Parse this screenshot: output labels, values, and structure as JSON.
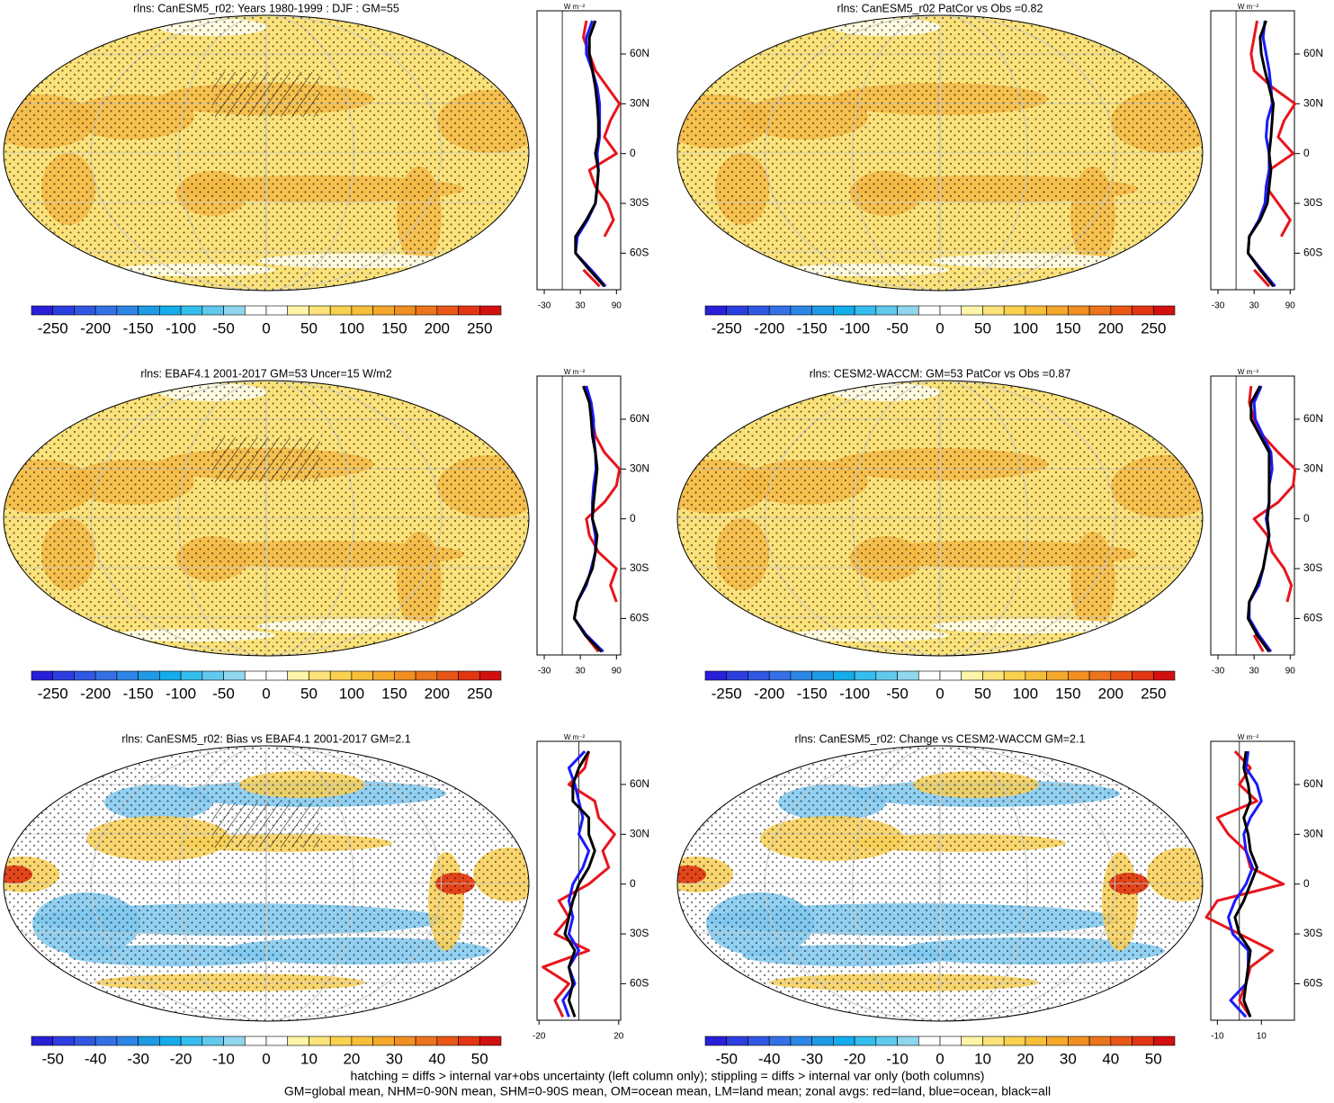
{
  "chart_data": [
    {
      "type": "map",
      "title": "rlns: CanESM5_r02: Years 1980-1999 : DJF : GM=55",
      "clim": [
        -275,
        275
      ],
      "cbar_ticks": [
        -250,
        -200,
        -150,
        -100,
        -50,
        0,
        50,
        100,
        150,
        200,
        250
      ],
      "cbar_colors": [
        "#2a1fd9",
        "#2d3ee0",
        "#3158e3",
        "#3470e6",
        "#2d86e6",
        "#1f9ae4",
        "#14acea",
        "#35bdee",
        "#62c9ee",
        "#8fd6ee",
        "#ffffff",
        "#ffffff",
        "#fff5a8",
        "#fce47a",
        "#f9d14f",
        "#f7be3a",
        "#f4a82c",
        "#f18f22",
        "#ec741c",
        "#e85618",
        "#e33514",
        "#d21010"
      ]
    },
    {
      "type": "line",
      "unit": "W m⁻²",
      "xlim": [
        -42,
        97
      ],
      "xticks": [
        -30,
        30,
        90
      ],
      "ylim": [
        -82,
        86
      ],
      "yticks": [
        {
          "value": -60,
          "label": "60S"
        },
        {
          "value": -30,
          "label": "30S"
        },
        {
          "value": 0,
          "label": "0"
        },
        {
          "value": 30,
          "label": "30N"
        },
        {
          "value": 60,
          "label": "60N"
        }
      ],
      "y": [
        80,
        70,
        60,
        50,
        40,
        30,
        20,
        10,
        0,
        -10,
        -20,
        -30,
        -40,
        -50,
        -60,
        -70,
        -80
      ],
      "series": [
        {
          "color": "#e8141c",
          "values": [
            40,
            35,
            45,
            55,
            75,
            95,
            80,
            70,
            90,
            45,
            55,
            75,
            85,
            70,
            null,
            35,
            62
          ]
        },
        {
          "color": "#1a1aff",
          "values": [
            50,
            40,
            40,
            50,
            58,
            62,
            62,
            62,
            58,
            60,
            58,
            55,
            42,
            25,
            22,
            48,
            72
          ]
        },
        {
          "color": "#000000",
          "values": [
            55,
            45,
            45,
            50,
            55,
            58,
            60,
            60,
            55,
            60,
            58,
            55,
            40,
            22,
            22,
            45,
            70
          ]
        }
      ]
    },
    {
      "type": "map",
      "title": "rlns: CanESM5_r02 PatCor vs Obs =0.82",
      "clim": [
        -275,
        275
      ],
      "cbar_ticks": [
        -250,
        -200,
        -150,
        -100,
        -50,
        0,
        50,
        100,
        150,
        200,
        250
      ],
      "cbar_colors": [
        "#2a1fd9",
        "#2d3ee0",
        "#3158e3",
        "#3470e6",
        "#2d86e6",
        "#1f9ae4",
        "#14acea",
        "#35bdee",
        "#62c9ee",
        "#8fd6ee",
        "#ffffff",
        "#ffffff",
        "#fff5a8",
        "#fce47a",
        "#f9d14f",
        "#f7be3a",
        "#f4a82c",
        "#f18f22",
        "#ec741c",
        "#e85618",
        "#e33514",
        "#d21010"
      ]
    },
    {
      "type": "line",
      "unit": "W m⁻²",
      "xlim": [
        -42,
        97
      ],
      "xticks": [
        -30,
        30,
        90
      ],
      "ylim": [
        -82,
        86
      ],
      "yticks": [
        {
          "value": -60,
          "label": "60S"
        },
        {
          "value": -30,
          "label": "30S"
        },
        {
          "value": 0,
          "label": "0"
        },
        {
          "value": 30,
          "label": "30N"
        },
        {
          "value": 60,
          "label": "60N"
        }
      ],
      "y": [
        80,
        70,
        60,
        50,
        40,
        30,
        20,
        10,
        0,
        -10,
        -20,
        -30,
        -40,
        -50,
        -60,
        -70,
        -80
      ],
      "series": [
        {
          "color": "#e8141c",
          "values": [
            35,
            30,
            25,
            30,
            60,
            98,
            80,
            70,
            95,
            55,
            50,
            70,
            90,
            75,
            null,
            30,
            55
          ]
        },
        {
          "color": "#1a1aff",
          "values": [
            48,
            45,
            50,
            55,
            58,
            60,
            52,
            50,
            55,
            55,
            50,
            48,
            38,
            22,
            20,
            42,
            65
          ]
        },
        {
          "color": "#000000",
          "values": [
            50,
            40,
            42,
            48,
            55,
            62,
            60,
            58,
            55,
            58,
            55,
            52,
            40,
            22,
            20,
            40,
            62
          ]
        }
      ]
    },
    {
      "type": "map",
      "title": "rlns: EBAF4.1 2001-2017 GM=53 Uncer=15 W/m2",
      "clim": [
        -275,
        275
      ],
      "cbar_ticks": [
        -250,
        -200,
        -150,
        -100,
        -50,
        0,
        50,
        100,
        150,
        200,
        250
      ],
      "cbar_colors": [
        "#2a1fd9",
        "#2d3ee0",
        "#3158e3",
        "#3470e6",
        "#2d86e6",
        "#1f9ae4",
        "#14acea",
        "#35bdee",
        "#62c9ee",
        "#8fd6ee",
        "#ffffff",
        "#ffffff",
        "#fff5a8",
        "#fce47a",
        "#f9d14f",
        "#f7be3a",
        "#f4a82c",
        "#f18f22",
        "#ec741c",
        "#e85618",
        "#e33514",
        "#d21010"
      ]
    },
    {
      "type": "line",
      "unit": "W m⁻²",
      "xlim": [
        -42,
        97
      ],
      "xticks": [
        -30,
        30,
        90
      ],
      "ylim": [
        -82,
        86
      ],
      "yticks": [
        {
          "value": -60,
          "label": "60S"
        },
        {
          "value": -30,
          "label": "30S"
        },
        {
          "value": 0,
          "label": "0"
        },
        {
          "value": 30,
          "label": "30N"
        },
        {
          "value": 60,
          "label": "60N"
        }
      ],
      "y": [
        80,
        70,
        60,
        50,
        40,
        30,
        20,
        10,
        0,
        -10,
        -20,
        -30,
        -40,
        -50,
        -60,
        -70,
        -80
      ],
      "series": [
        {
          "color": "#e8141c",
          "values": [
            38,
            45,
            50,
            55,
            70,
            95,
            90,
            70,
            40,
            45,
            60,
            90,
            80,
            90,
            null,
            38,
            60
          ]
        },
        {
          "color": "#1a1aff",
          "values": [
            40,
            48,
            52,
            52,
            55,
            56,
            52,
            50,
            50,
            55,
            55,
            48,
            40,
            25,
            20,
            40,
            68
          ]
        },
        {
          "color": "#000000",
          "values": [
            35,
            45,
            48,
            50,
            55,
            58,
            55,
            52,
            50,
            58,
            55,
            50,
            38,
            25,
            20,
            38,
            65
          ]
        }
      ]
    },
    {
      "type": "map",
      "title": "rlns: CESM2-WACCM: GM=53 PatCor vs Obs =0.87",
      "clim": [
        -275,
        275
      ],
      "cbar_ticks": [
        -250,
        -200,
        -150,
        -100,
        -50,
        0,
        50,
        100,
        150,
        200,
        250
      ],
      "cbar_colors": [
        "#2a1fd9",
        "#2d3ee0",
        "#3158e3",
        "#3470e6",
        "#2d86e6",
        "#1f9ae4",
        "#14acea",
        "#35bdee",
        "#62c9ee",
        "#8fd6ee",
        "#ffffff",
        "#ffffff",
        "#fff5a8",
        "#fce47a",
        "#f9d14f",
        "#f7be3a",
        "#f4a82c",
        "#f18f22",
        "#ec741c",
        "#e85618",
        "#e33514",
        "#d21010"
      ]
    },
    {
      "type": "line",
      "unit": "W m⁻²",
      "xlim": [
        -42,
        97
      ],
      "xticks": [
        -30,
        30,
        90
      ],
      "ylim": [
        -82,
        86
      ],
      "yticks": [
        {
          "value": -60,
          "label": "60S"
        },
        {
          "value": -30,
          "label": "30S"
        },
        {
          "value": 0,
          "label": "0"
        },
        {
          "value": 30,
          "label": "30N"
        },
        {
          "value": 60,
          "label": "60N"
        }
      ],
      "y": [
        80,
        70,
        60,
        50,
        40,
        30,
        20,
        10,
        0,
        -10,
        -20,
        -30,
        -40,
        -50,
        -60,
        -70,
        -80
      ],
      "series": [
        {
          "color": "#e8141c",
          "values": [
            25,
            22,
            30,
            45,
            70,
            98,
            95,
            70,
            30,
            52,
            60,
            80,
            92,
            85,
            null,
            30,
            45
          ]
        },
        {
          "color": "#1a1aff",
          "values": [
            42,
            30,
            32,
            45,
            58,
            60,
            55,
            55,
            50,
            55,
            50,
            45,
            38,
            22,
            22,
            38,
            58
          ]
        },
        {
          "color": "#000000",
          "values": [
            40,
            25,
            25,
            40,
            55,
            55,
            55,
            55,
            52,
            55,
            50,
            45,
            35,
            22,
            20,
            35,
            55
          ]
        }
      ]
    },
    {
      "type": "map",
      "title": "rlns: CanESM5_r02: Bias vs EBAF4.1 2001-2017 GM=2.1",
      "clim": [
        -55,
        55
      ],
      "cbar_ticks": [
        -50,
        -40,
        -30,
        -20,
        -10,
        0,
        10,
        20,
        30,
        40,
        50
      ],
      "cbar_colors": [
        "#2a1fd9",
        "#2d3ee0",
        "#3158e3",
        "#3470e6",
        "#2d86e6",
        "#1f9ae4",
        "#14acea",
        "#35bdee",
        "#62c9ee",
        "#8fd6ee",
        "#ffffff",
        "#ffffff",
        "#fff5a8",
        "#fce47a",
        "#f9d14f",
        "#f7be3a",
        "#f4a82c",
        "#f18f22",
        "#ec741c",
        "#e85618",
        "#e33514",
        "#d21010"
      ]
    },
    {
      "type": "line",
      "unit": "W m⁻²",
      "xlim": [
        -21,
        21
      ],
      "xticks": [
        -20,
        20
      ],
      "ylim": [
        -82,
        86
      ],
      "yticks": [
        {
          "value": -60,
          "label": "60S"
        },
        {
          "value": -30,
          "label": "30S"
        },
        {
          "value": 0,
          "label": "0"
        },
        {
          "value": 30,
          "label": "30N"
        },
        {
          "value": 60,
          "label": "60N"
        }
      ],
      "y": [
        80,
        70,
        60,
        50,
        40,
        30,
        20,
        10,
        0,
        -10,
        -20,
        -30,
        -40,
        -50,
        -60,
        -70,
        -80
      ],
      "series": [
        {
          "color": "#e8141c",
          "values": [
            5,
            3,
            -5,
            8,
            10,
            18,
            12,
            15,
            5,
            -10,
            -5,
            -12,
            5,
            -18,
            -5,
            -12,
            -8
          ]
        },
        {
          "color": "#1a1aff",
          "values": [
            3,
            -5,
            -2,
            0,
            2,
            0,
            5,
            2,
            -3,
            -5,
            -3,
            -5,
            0,
            -5,
            -2,
            -8,
            -5
          ]
        },
        {
          "color": "#000000",
          "values": [
            5,
            0,
            -3,
            -3,
            5,
            5,
            8,
            5,
            0,
            -3,
            -5,
            -7,
            -2,
            -5,
            -3,
            -5,
            -2
          ]
        }
      ]
    },
    {
      "type": "map",
      "title": "rlns: CanESM5_r02: Change vs CESM2-WACCM GM=2.1",
      "clim": [
        -55,
        55
      ],
      "cbar_ticks": [
        -50,
        -40,
        -30,
        -20,
        -10,
        0,
        10,
        20,
        30,
        40,
        50
      ],
      "cbar_colors": [
        "#2a1fd9",
        "#2d3ee0",
        "#3158e3",
        "#3470e6",
        "#2d86e6",
        "#1f9ae4",
        "#14acea",
        "#35bdee",
        "#62c9ee",
        "#8fd6ee",
        "#ffffff",
        "#ffffff",
        "#fff5a8",
        "#fce47a",
        "#f9d14f",
        "#f7be3a",
        "#f4a82c",
        "#f18f22",
        "#ec741c",
        "#e85618",
        "#e33514",
        "#d21010"
      ]
    },
    {
      "type": "line",
      "unit": "W m⁻²",
      "xlim": [
        -13,
        25
      ],
      "xticks": [
        -10,
        10
      ],
      "ylim": [
        -82,
        86
      ],
      "yticks": [
        {
          "value": -60,
          "label": "60S"
        },
        {
          "value": -30,
          "label": "30S"
        },
        {
          "value": 0,
          "label": "0"
        },
        {
          "value": 30,
          "label": "30N"
        },
        {
          "value": 60,
          "label": "60N"
        }
      ],
      "y": [
        80,
        70,
        60,
        50,
        40,
        30,
        20,
        10,
        0,
        -10,
        -20,
        -30,
        -40,
        -50,
        -60,
        -70,
        -80
      ],
      "series": [
        {
          "color": "#e8141c",
          "values": [
            -2,
            5,
            0,
            8,
            -10,
            -5,
            3,
            5,
            20,
            -10,
            -15,
            0,
            15,
            5,
            3,
            0,
            5
          ]
        },
        {
          "color": "#1a1aff",
          "values": [
            4,
            3,
            8,
            10,
            5,
            2,
            3,
            6,
            3,
            -2,
            -5,
            -3,
            4,
            4,
            3,
            -4,
            3
          ]
        },
        {
          "color": "#000000",
          "values": [
            3,
            2,
            4,
            5,
            2,
            4,
            5,
            8,
            5,
            2,
            -2,
            0,
            5,
            4,
            3,
            2,
            5
          ]
        }
      ]
    }
  ],
  "notes": [
    "hatching = diffs > internal var+obs uncertainty (left column only); stippling = diffs > internal var only (both columns)",
    "GM=global mean, NHM=0-90N mean, SHM=0-90S mean, OM=ocean mean, LM=land mean; zonal avgs: red=land, blue=ocean, black=all"
  ]
}
